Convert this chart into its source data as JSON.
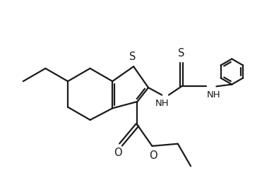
{
  "bg_color": "#ffffff",
  "line_color": "#1a1a1a",
  "line_width": 1.6,
  "font_size": 9.5,
  "fig_width": 3.88,
  "fig_height": 2.72,
  "xlim": [
    0,
    11
  ],
  "ylim": [
    0,
    7.5
  ]
}
